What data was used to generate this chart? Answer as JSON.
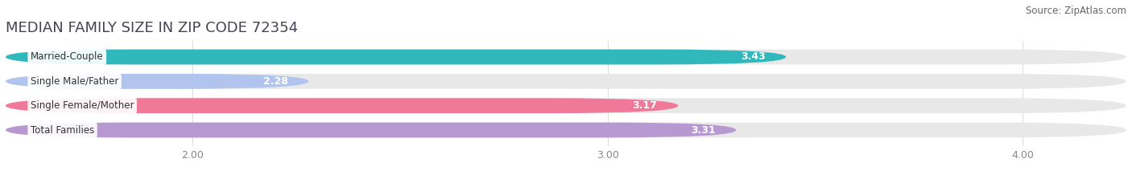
{
  "title": "MEDIAN FAMILY SIZE IN ZIP CODE 72354",
  "source": "Source: ZipAtlas.com",
  "categories": [
    "Married-Couple",
    "Single Male/Father",
    "Single Female/Mother",
    "Total Families"
  ],
  "values": [
    3.43,
    2.28,
    3.17,
    3.31
  ],
  "bar_colors": [
    "#30b8bc",
    "#b0c4ee",
    "#f07898",
    "#b898d0"
  ],
  "xlim_left": 1.55,
  "xlim_right": 4.25,
  "xticks": [
    2.0,
    3.0,
    4.0
  ],
  "xtick_labels": [
    "2.00",
    "3.00",
    "4.00"
  ],
  "bar_height": 0.62,
  "track_color": "#e8e8e8",
  "background_color": "#ffffff",
  "title_fontsize": 13,
  "source_fontsize": 8.5,
  "bar_label_fontsize": 9,
  "category_fontsize": 8.5,
  "tick_fontsize": 9
}
